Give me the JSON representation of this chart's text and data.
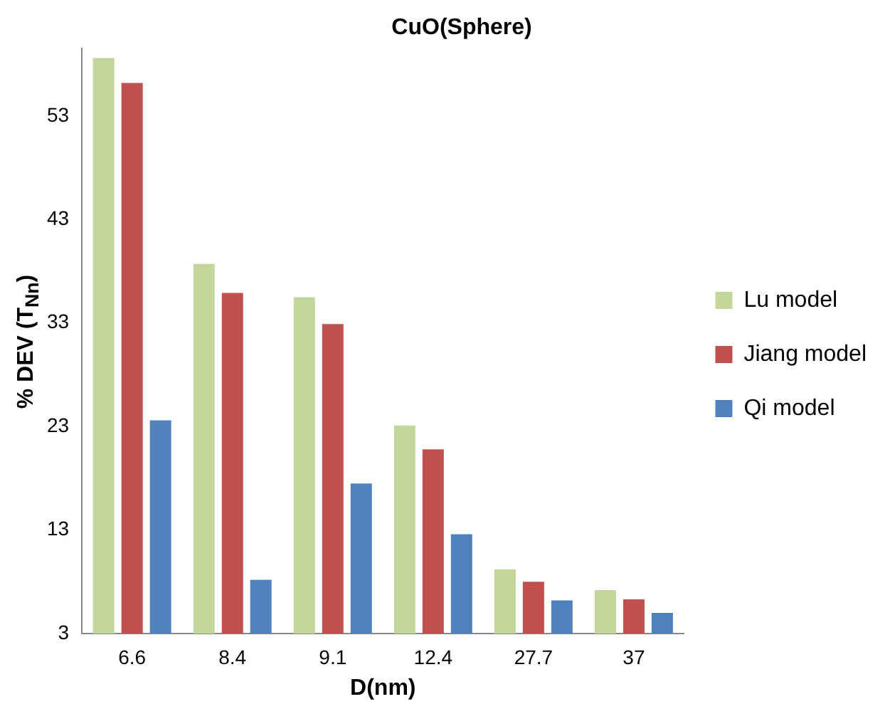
{
  "chart_data": {
    "type": "bar",
    "title": "CuO(Sphere)",
    "xlabel": "D(nm)",
    "ylabel": "% DEV  (T$_{Nn}$)",
    "categories": [
      "6.6",
      "8.4",
      "9.1",
      "12.4",
      "27.7",
      "37"
    ],
    "series": [
      {
        "name": "Lu model",
        "color": "#c3d69b",
        "values": [
          58.6,
          38.7,
          35.5,
          23.1,
          9.2,
          7.2
        ]
      },
      {
        "name": "Jiang model",
        "color": "#c0504d",
        "values": [
          56.2,
          35.9,
          32.9,
          20.8,
          8.0,
          6.3
        ]
      },
      {
        "name": "Qi model",
        "color": "#4f81bd",
        "values": [
          23.6,
          8.2,
          17.5,
          12.6,
          6.2,
          5.0
        ]
      }
    ],
    "ylim": [
      3,
      59.5
    ],
    "yticks": [
      3,
      13,
      23,
      33,
      43,
      53
    ],
    "grid": false,
    "legend": "right"
  }
}
